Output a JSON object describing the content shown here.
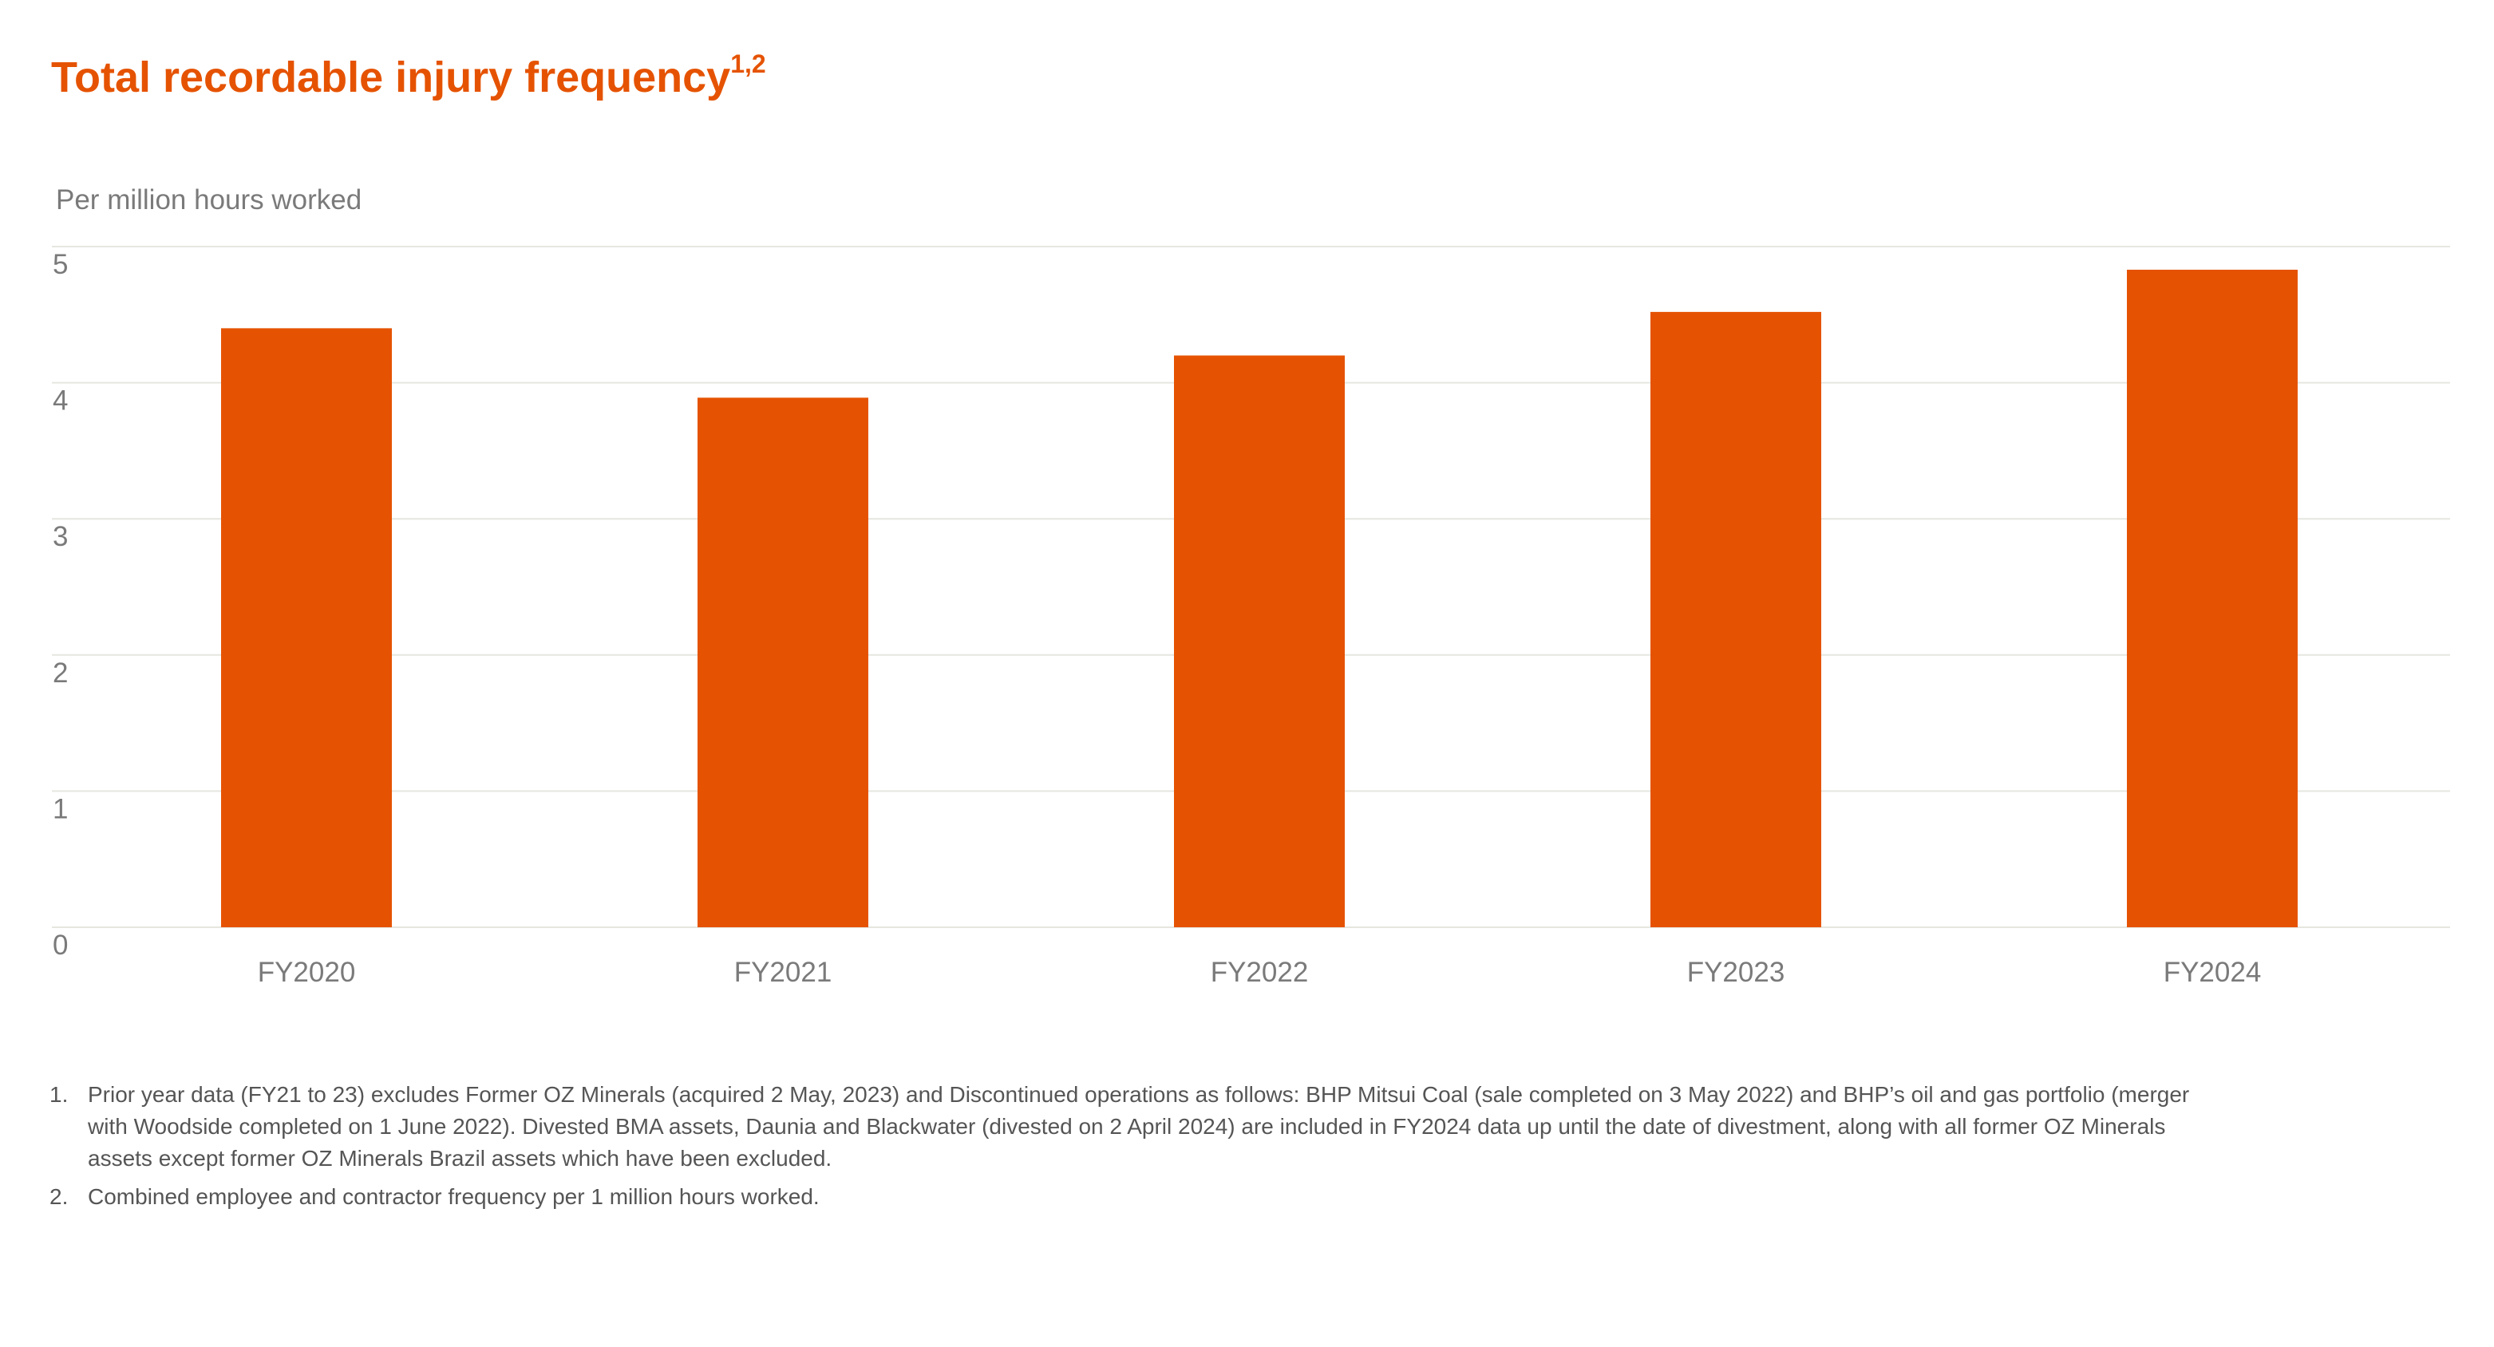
{
  "title": {
    "text": "Total recordable injury frequency",
    "superscript": "1,2"
  },
  "colors": {
    "accent": "#e55302",
    "gridline": "#e6e6e0",
    "axis_text": "#7a7a7a",
    "footnote_text": "#555555"
  },
  "chart_data": {
    "type": "bar",
    "title": "Total recordable injury frequency",
    "ylabel": "Per million hours worked",
    "xlabel": "",
    "categories": [
      "FY2020",
      "FY2021",
      "FY2022",
      "FY2023",
      "FY2024"
    ],
    "values": [
      4.4,
      3.89,
      4.2,
      4.52,
      4.83
    ],
    "ylim": [
      0,
      5
    ],
    "yticks": [
      0,
      1,
      2,
      3,
      4,
      5
    ],
    "grid": true,
    "legend": "none",
    "bar_color": "#e55302"
  },
  "footnotes": [
    {
      "number": "1.",
      "text": "Prior year data (FY21 to 23) excludes Former OZ Minerals (acquired 2 May, 2023) and Discontinued operations as follows: BHP Mitsui Coal (sale completed on 3 May 2022) and BHP’s oil and gas portfolio (merger with Woodside completed on 1 June 2022). Divested BMA assets, Daunia and Blackwater (divested on 2 April 2024) are included in FY2024 data up until the date of divestment, along with all former OZ Minerals assets except former OZ Minerals Brazil assets which have been excluded."
    },
    {
      "number": "2.",
      "text": "Combined employee and contractor frequency per 1 million hours worked."
    }
  ]
}
